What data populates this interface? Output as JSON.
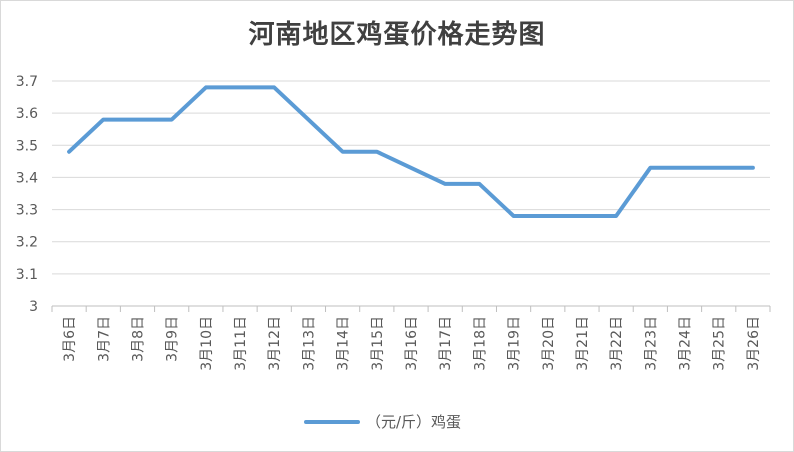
{
  "chart_data": {
    "type": "line",
    "title": "河南地区鸡蛋价格走势图",
    "categories": [
      "3月6日",
      "3月7日",
      "3月8日",
      "3月9日",
      "3月10日",
      "3月11日",
      "3月12日",
      "3月13日",
      "3月14日",
      "3月15日",
      "3月16日",
      "3月17日",
      "3月18日",
      "3月19日",
      "3月20日",
      "3月21日",
      "3月22日",
      "3月23日",
      "3月24日",
      "3月25日",
      "3月26日"
    ],
    "series": [
      {
        "name": "（元/斤）鸡蛋",
        "color": "#5b9bd5",
        "values": [
          3.48,
          3.58,
          3.58,
          3.58,
          3.68,
          3.68,
          3.68,
          3.58,
          3.48,
          3.48,
          3.43,
          3.38,
          3.38,
          3.28,
          3.28,
          3.28,
          3.28,
          3.43,
          3.43,
          3.43,
          3.43
        ]
      }
    ],
    "ylim": [
      3,
      3.7
    ],
    "yticks": [
      "3",
      "3.1",
      "3.2",
      "3.3",
      "3.4",
      "3.5",
      "3.6",
      "3.7"
    ],
    "grid": true,
    "legend": "bottom"
  }
}
